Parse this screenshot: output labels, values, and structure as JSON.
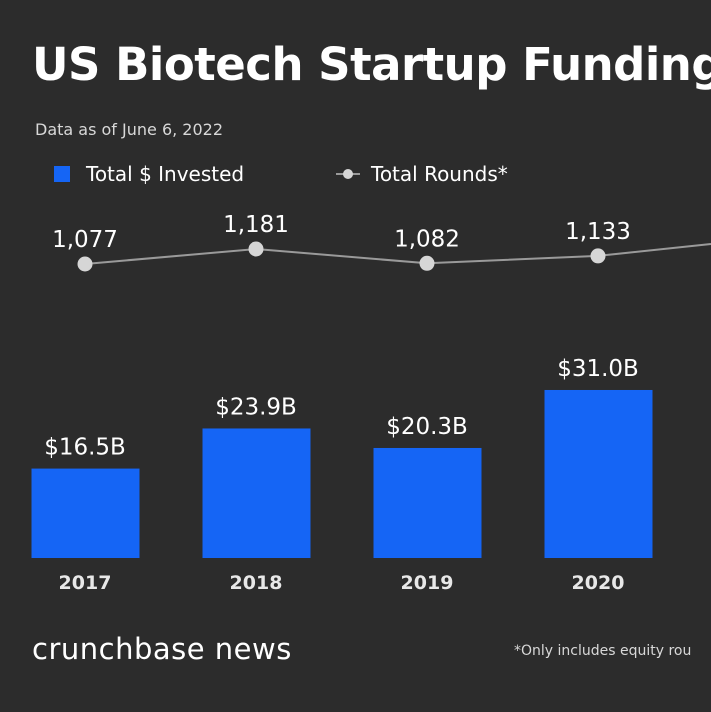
{
  "chart_data": {
    "type": "bar",
    "title": "US Biotech Startup Funding",
    "subtitle": "Data as of June 6, 2022",
    "categories": [
      "2017",
      "2018",
      "2019",
      "2020"
    ],
    "series": [
      {
        "name": "Total $ Invested",
        "type": "bar",
        "unit": "USD billions",
        "values": [
          16.5,
          23.9,
          20.3,
          31.0
        ],
        "labels": [
          "$16.5B",
          "$23.9B",
          "$20.3B",
          "$31.0B"
        ]
      },
      {
        "name": "Total Rounds*",
        "type": "line",
        "values": [
          1077,
          1181,
          1082,
          1133
        ],
        "labels": [
          "1,077",
          "1,181",
          "1,082",
          "1,133"
        ]
      }
    ],
    "bar_ylim": [
      0,
      35
    ],
    "line_ylim": [
      600,
      1250
    ],
    "legend": [
      "Total $ Invested",
      "Total Rounds*"
    ],
    "legend_position": "top-left",
    "grid": false
  },
  "brand": "crunchbase news",
  "footnote": "*Only includes equity rou",
  "colors": {
    "background": "#2c2c2c",
    "bar": "#1565f5",
    "line": "#9a9a9a",
    "marker": "#d6d6d6",
    "text": "#ffffff"
  }
}
